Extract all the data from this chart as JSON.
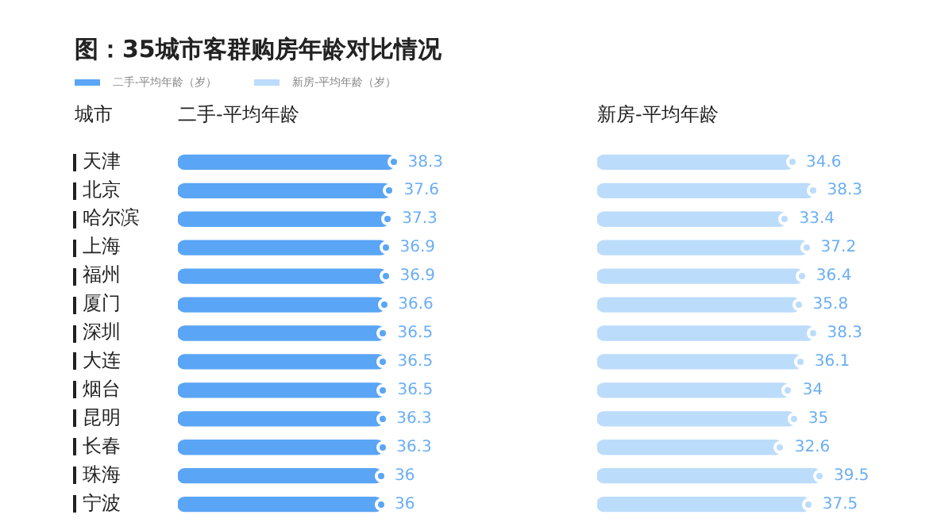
{
  "chart_data": [
    {
      "type": "bar",
      "orientation": "horizontal",
      "title": "图：35城市客群购房年龄对比情况",
      "subtitle": "二手-平均年龄",
      "ylabel": "城市",
      "legend": "top left",
      "data_labels": true,
      "marker": "circle",
      "grid": false,
      "categories": [
        "天津",
        "北京",
        "哈尔滨",
        "上海",
        "福州",
        "厦门",
        "深圳",
        "大连",
        "烟台",
        "昆明",
        "长春",
        "珠海",
        "宁波"
      ],
      "series": [
        {
          "name": "二手-平均年龄（岁）",
          "color": "#5aa5f5",
          "values": [
            38.3,
            37.6,
            37.3,
            36.9,
            36.9,
            36.6,
            36.5,
            36.5,
            36.5,
            36.3,
            36.3,
            36,
            36
          ]
        }
      ]
    },
    {
      "type": "bar",
      "orientation": "horizontal",
      "subtitle": "新房-平均年龄",
      "legend": "top left",
      "data_labels": true,
      "marker": "circle",
      "grid": false,
      "categories": [
        null,
        null,
        null,
        null,
        null,
        null,
        null,
        null,
        null,
        null,
        null,
        null,
        null
      ],
      "series": [
        {
          "name": "新房-平均年龄（岁）",
          "color": "#bcdcfb",
          "values": [
            34.6,
            38.3,
            33.4,
            37.2,
            36.4,
            35.8,
            38.3,
            36.1,
            34,
            35,
            32.6,
            39.5,
            37.5
          ]
        }
      ]
    }
  ]
}
